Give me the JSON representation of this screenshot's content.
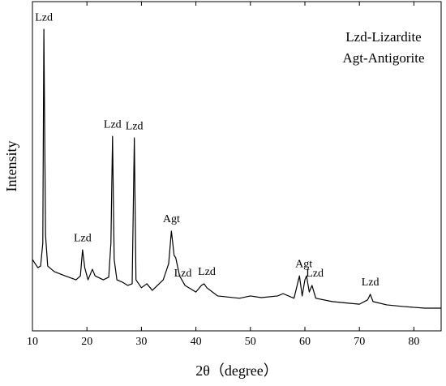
{
  "chart_data": {
    "type": "line",
    "x_label": "2θ（degree）",
    "y_label": "Intensity",
    "note_lines": [
      "Lzd-Lizardite",
      "Agt-Antigorite"
    ],
    "xlim": [
      10,
      85
    ],
    "ylim": [
      0,
      100
    ],
    "xticks": [
      10,
      20,
      30,
      40,
      50,
      60,
      70,
      80
    ],
    "series": [
      {
        "color": "#000000",
        "x": [
          10,
          10.5,
          11,
          11.5,
          11.9,
          12.1,
          12.4,
          12.8,
          14,
          16,
          18,
          18.8,
          19.2,
          19.6,
          20.2,
          21,
          21.5,
          23,
          24,
          24.4,
          24.7,
          25,
          25.5,
          26.5,
          27.5,
          28.3,
          28.7,
          29,
          30,
          31,
          32,
          34,
          35,
          35.5,
          36,
          36.3,
          37,
          38,
          40,
          41,
          41.5,
          42,
          44,
          48,
          50,
          52,
          55,
          56,
          58,
          59,
          59.5,
          60,
          60.3,
          60.8,
          61.3,
          62,
          65,
          68,
          70,
          71.5,
          72,
          72.5,
          75,
          78,
          82,
          85
        ],
        "values": [
          21.7,
          20.4,
          19.2,
          19.7,
          26.6,
          91.6,
          29.1,
          19.7,
          18.0,
          16.7,
          15.5,
          16.7,
          24.6,
          19.2,
          15.5,
          18.7,
          16.7,
          15.5,
          16.3,
          26.6,
          59.1,
          21.7,
          15.5,
          14.8,
          13.8,
          14.3,
          58.6,
          15.5,
          13.1,
          14.3,
          12.3,
          15.5,
          20.4,
          30.3,
          22.9,
          22.2,
          16.7,
          13.8,
          11.8,
          13.8,
          14.3,
          13.1,
          10.6,
          9.9,
          10.6,
          10.1,
          10.6,
          11.3,
          9.9,
          16.7,
          10.6,
          15.5,
          16.7,
          11.8,
          13.8,
          9.9,
          8.9,
          8.4,
          8.1,
          9.4,
          11.1,
          8.9,
          7.9,
          7.4,
          6.9,
          6.9
        ]
      }
    ],
    "annotations": [
      {
        "text": "Lzd",
        "x": 12.1
      },
      {
        "text": "Lzd",
        "x": 19.2
      },
      {
        "text": "Lzd",
        "x": 24.7
      },
      {
        "text": "Lzd",
        "x": 28.7
      },
      {
        "text": "Agt",
        "x": 35.5
      },
      {
        "text": "Lzd",
        "x": 37.6
      },
      {
        "text": "Lzd",
        "x": 42
      },
      {
        "text": "Agt",
        "x": 59.8
      },
      {
        "text": "Lzd",
        "x": 61.8
      },
      {
        "text": "Lzd",
        "x": 72
      }
    ]
  }
}
